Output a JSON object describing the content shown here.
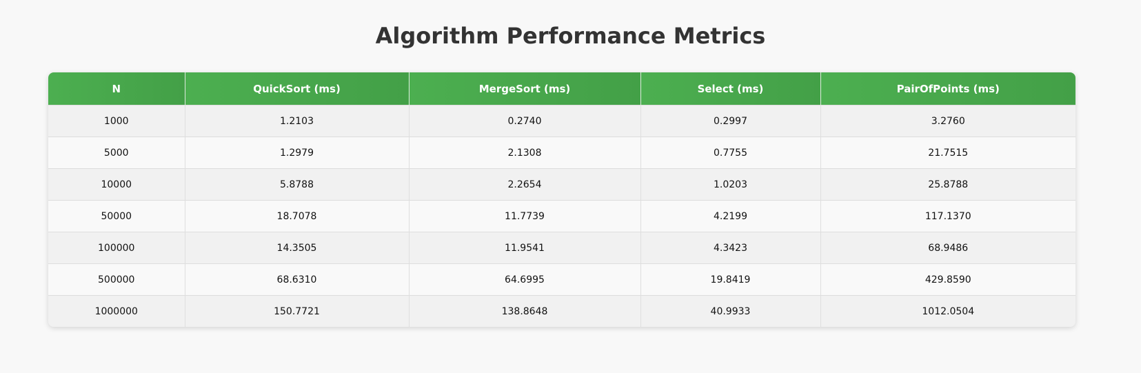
{
  "title": "Algorithm Performance Metrics",
  "chart_data": {
    "type": "table",
    "title": "Algorithm Performance Metrics",
    "columns": [
      "N",
      "QuickSort (ms)",
      "MergeSort (ms)",
      "Select (ms)",
      "PairOfPoints (ms)"
    ],
    "rows": [
      [
        "1000",
        "1.2103",
        "0.2740",
        "0.2997",
        "3.2760"
      ],
      [
        "5000",
        "1.2979",
        "2.1308",
        "0.7755",
        "21.7515"
      ],
      [
        "10000",
        "5.8788",
        "2.2654",
        "1.0203",
        "25.8788"
      ],
      [
        "50000",
        "18.7078",
        "11.7739",
        "4.2199",
        "117.1370"
      ],
      [
        "100000",
        "14.3505",
        "11.9541",
        "4.3423",
        "68.9486"
      ],
      [
        "500000",
        "68.6310",
        "64.6995",
        "19.8419",
        "429.8590"
      ],
      [
        "1000000",
        "150.7721",
        "138.8648",
        "40.9933",
        "1012.0504"
      ]
    ]
  },
  "colors": {
    "header_green": "#4caf50",
    "header_text": "#ffffff",
    "row_alt": "#f1f1f1",
    "row_base": "#f9f9f9",
    "title": "#333333"
  }
}
